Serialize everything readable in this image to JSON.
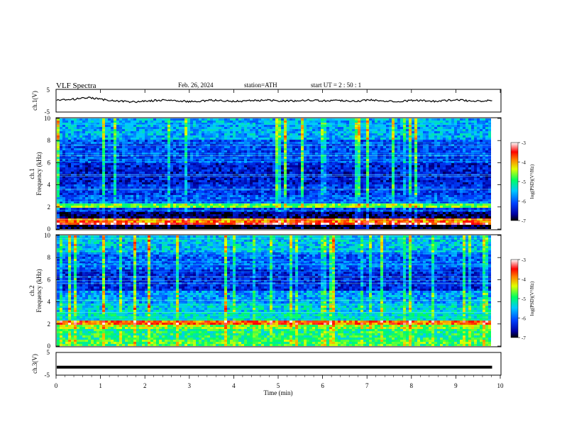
{
  "header": {
    "title": "VLF  Spectra",
    "date": "Feb. 26, 2024",
    "station": "station=ATH",
    "start": "start  UT  =   2  : 50 : 1"
  },
  "chart_data": [
    {
      "type": "line",
      "name": "ch1-waveform",
      "ylabel": "ch.1(V)",
      "ylim": [
        -5,
        5
      ],
      "yticks": [
        "5",
        "-5"
      ],
      "x": [
        0,
        0.25,
        0.5,
        0.75,
        1,
        1.25,
        1.5,
        1.75,
        2,
        2.25,
        2.5,
        2.75,
        3,
        3.25,
        3.5,
        3.75,
        4,
        4.25,
        4.5,
        4.75,
        5,
        5.25,
        5.5,
        5.75,
        6,
        6.25,
        6.5,
        6.75,
        7,
        7.25,
        7.5,
        7.75,
        8,
        8.25,
        8.5,
        8.75,
        9,
        9.25,
        9.5,
        9.8
      ],
      "y": [
        0.2,
        0.4,
        0.9,
        1.2,
        0.6,
        0.1,
        -0.3,
        -0.5,
        -0.2,
        0.1,
        0.3,
        -0.1,
        -0.4,
        -0.2,
        0.2,
        0.0,
        -0.3,
        -0.1,
        0.1,
        0.3,
        0.0,
        -0.2,
        0.1,
        0.3,
        -0.1,
        0.2,
        0.0,
        -0.2,
        0.3,
        0.1,
        -0.1,
        -0.3,
        0.2,
        0.0,
        -0.2,
        0.1,
        0.3,
        0.0,
        -0.1,
        0.1
      ]
    },
    {
      "type": "heatmap",
      "name": "ch1-spectrogram",
      "ylabel": "ch.1\nFrequency  (kHz)",
      "xlim": [
        0,
        9.8
      ],
      "ylim": [
        0,
        10
      ],
      "yticks": [
        "0",
        "2",
        "4",
        "6",
        "8",
        "10"
      ],
      "colorbar": {
        "label": "log(PSD)(V²/Hz)",
        "ticks": [
          "-3",
          "-4",
          "-5",
          "-6",
          "-7"
        ],
        "range": [
          -7,
          -3
        ]
      },
      "bands": [
        {
          "f": [
            0.0,
            0.3
          ],
          "level": -7.0
        },
        {
          "f": [
            0.3,
            0.6
          ],
          "level": -3.4
        },
        {
          "f": [
            0.6,
            1.0
          ],
          "level": -3.9
        },
        {
          "f": [
            1.0,
            1.6
          ],
          "level": -6.8
        },
        {
          "f": [
            1.6,
            1.9
          ],
          "level": -6.2
        },
        {
          "f": [
            1.9,
            2.4
          ],
          "level": -4.7
        },
        {
          "f": [
            2.4,
            3.0
          ],
          "level": -6.0
        },
        {
          "f": [
            3.0,
            4.0
          ],
          "level": -6.2
        },
        {
          "f": [
            4.0,
            6.0
          ],
          "level": -6.4
        },
        {
          "f": [
            6.0,
            8.0
          ],
          "level": -6.1
        },
        {
          "f": [
            8.0,
            10.0
          ],
          "level": -5.6
        }
      ]
    },
    {
      "type": "heatmap",
      "name": "ch2-spectrogram",
      "ylabel": "ch.2\nFrequency  (kHz)",
      "xlim": [
        0,
        9.8
      ],
      "ylim": [
        0,
        10
      ],
      "yticks": [
        "0",
        "2",
        "4",
        "6",
        "8",
        "10"
      ],
      "colorbar": {
        "label": "log(PSD)(V²/Hz)",
        "ticks": [
          "-3",
          "-4",
          "-5",
          "-6",
          "-7"
        ],
        "range": [
          -7,
          -3
        ]
      },
      "bands": [
        {
          "f": [
            0.0,
            0.5
          ],
          "level": -4.8
        },
        {
          "f": [
            0.5,
            1.5
          ],
          "level": -5.0
        },
        {
          "f": [
            1.5,
            2.0
          ],
          "level": -4.6
        },
        {
          "f": [
            2.0,
            2.3
          ],
          "level": -3.8
        },
        {
          "f": [
            2.3,
            3.0
          ],
          "level": -5.3
        },
        {
          "f": [
            3.0,
            3.8
          ],
          "level": -5.4
        },
        {
          "f": [
            3.8,
            5.0
          ],
          "level": -5.7
        },
        {
          "f": [
            5.0,
            7.0
          ],
          "level": -6.3
        },
        {
          "f": [
            7.0,
            8.5
          ],
          "level": -6.0
        },
        {
          "f": [
            8.5,
            10.0
          ],
          "level": -5.5
        }
      ]
    },
    {
      "type": "line",
      "name": "ch3-waveform",
      "ylabel": "ch.3(V)",
      "ylim": [
        -5,
        5
      ],
      "yticks": [
        "5",
        "-5"
      ],
      "x": [
        0,
        9.8
      ],
      "y": [
        -1.5,
        -1.5
      ]
    }
  ],
  "xaxis": {
    "label": "Time  (min)",
    "ticks": [
      "0",
      "1",
      "2",
      "3",
      "4",
      "5",
      "6",
      "7",
      "8",
      "9",
      "10"
    ],
    "xlim": [
      0,
      10
    ]
  }
}
